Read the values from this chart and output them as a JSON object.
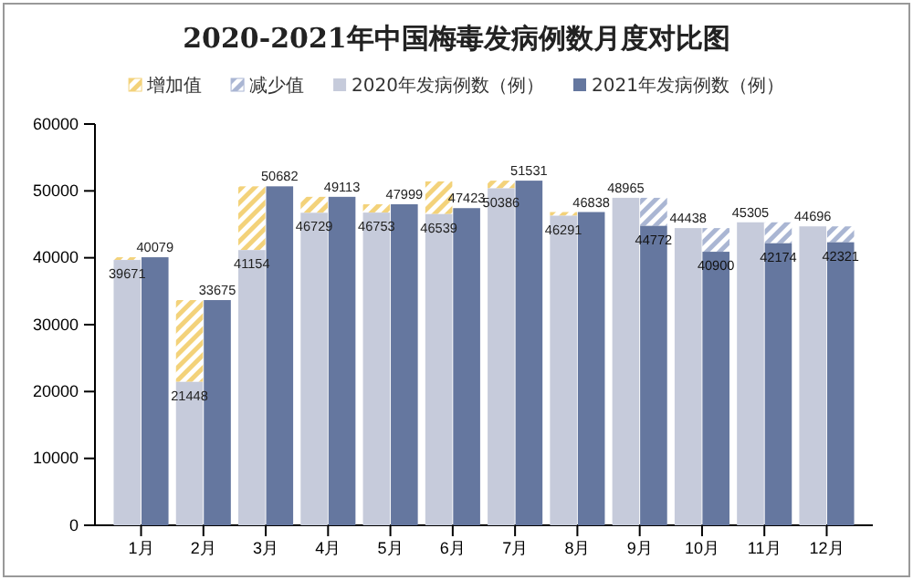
{
  "chart_data": {
    "type": "bar",
    "title": "2020-2021年中国梅毒发病例数月度对比图",
    "categories": [
      "1月",
      "2月",
      "3月",
      "4月",
      "5月",
      "6月",
      "7月",
      "8月",
      "9月",
      "10月",
      "11月",
      "12月"
    ],
    "series": [
      {
        "name": "增加值",
        "color": "#f3d27a",
        "values": [
          408,
          12227,
          9528,
          2384,
          1246,
          4884,
          1145,
          547,
          null,
          null,
          null,
          null
        ],
        "base": [
          39671,
          21448,
          41154,
          46729,
          46753,
          46539,
          50386,
          46291,
          null,
          null,
          null,
          null
        ]
      },
      {
        "name": "减少值",
        "color": "#aab6d3",
        "values": [
          null,
          null,
          null,
          null,
          null,
          null,
          null,
          null,
          4193,
          3538,
          3131,
          2375
        ],
        "base": [
          null,
          null,
          null,
          null,
          null,
          null,
          null,
          null,
          44772,
          40900,
          42174,
          42321
        ]
      },
      {
        "name": "2020年发病例数（例）",
        "color": "#c6cbdb",
        "values": [
          39671,
          21448,
          41154,
          46729,
          46753,
          46539,
          50386,
          46291,
          48965,
          44438,
          45305,
          44696
        ],
        "value_labels": [
          "39671",
          "21448",
          "41154",
          "46729",
          "46753",
          "46539",
          "50386",
          "46291",
          "48965",
          "44438",
          "45305",
          "44696"
        ]
      },
      {
        "name": "2021年发病例数（例）",
        "color": "#65779f",
        "values": [
          40079,
          33675,
          50682,
          49113,
          47999,
          47423,
          51531,
          46838,
          44772,
          40900,
          42174,
          42321
        ],
        "value_labels": [
          "40079",
          "33675",
          "50682",
          "49113",
          "47999",
          "47423",
          "51531",
          "46838",
          "44772",
          "40900",
          "42174",
          "42321"
        ]
      }
    ],
    "ylim": [
      0,
      60000
    ],
    "yticks": [
      0,
      10000,
      20000,
      30000,
      40000,
      50000,
      60000
    ],
    "legend": "top"
  }
}
